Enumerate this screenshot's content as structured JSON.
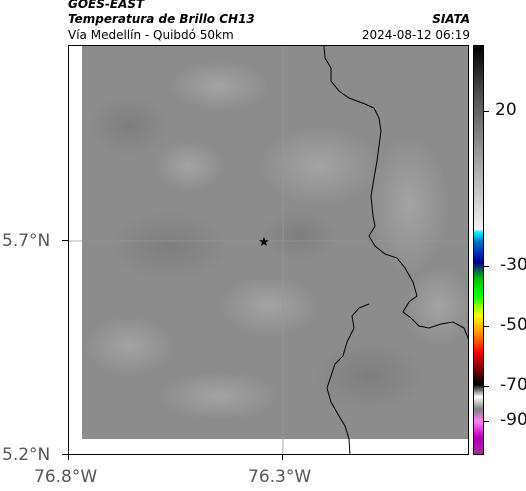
{
  "header": {
    "satellite": "GOES-EAST",
    "product": "Temperatura de Brillo CH13",
    "region": "Vía Medellín - Quibdó 50km",
    "agency": "SIATA",
    "datetime": "2024-08-12 06:19"
  },
  "map": {
    "y_ticks": [
      "5.7°N",
      "5.2°N"
    ],
    "x_ticks": [
      "76.8°W",
      "76.3°W"
    ],
    "marker_icon": "star-icon",
    "background_color": "#8c8c8c",
    "border_color": "#000000"
  },
  "colorbar": {
    "ticks": [
      "20",
      "-30",
      "-50",
      "-70",
      "-90"
    ],
    "palette_icon": "brightness-temperature-colormap"
  }
}
